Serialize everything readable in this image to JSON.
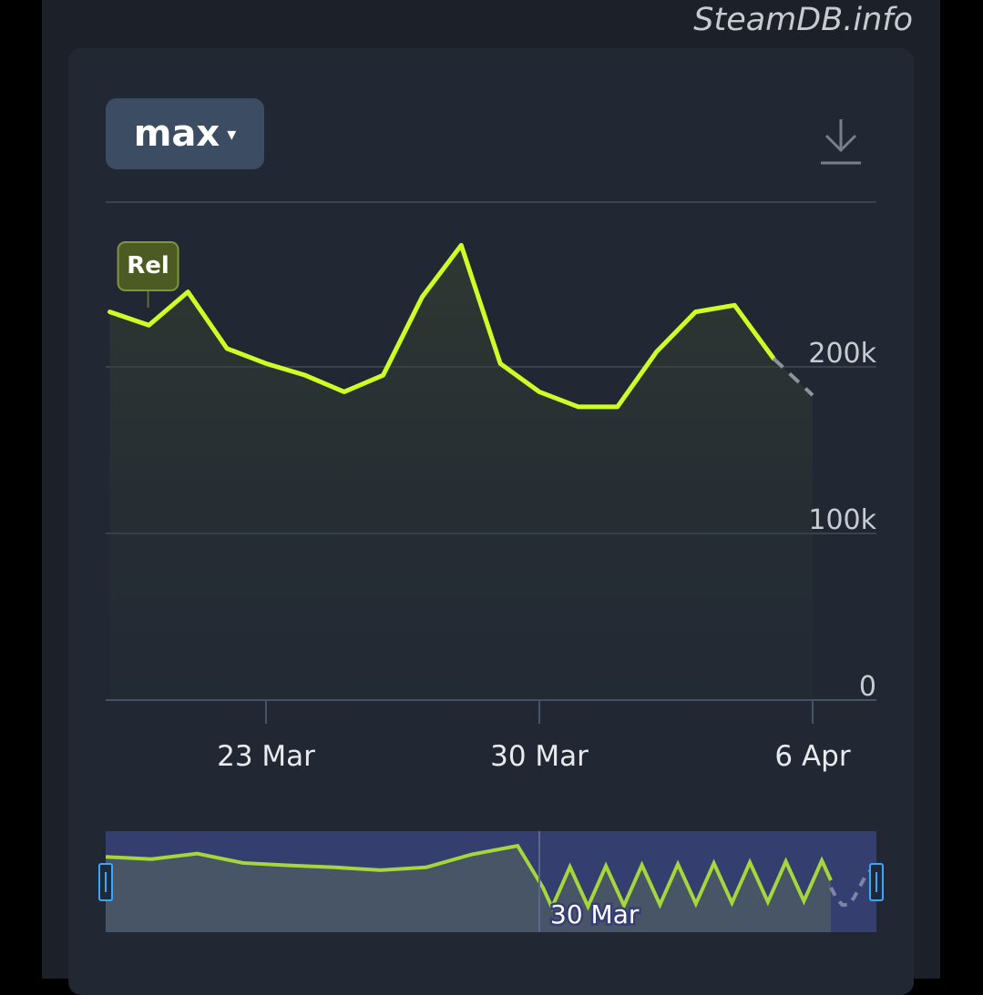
{
  "watermark": "SteamDB.info",
  "controls": {
    "range_label": "max",
    "range_caret": "▾",
    "download_icon": "download-icon"
  },
  "chart_data": {
    "type": "line",
    "title": "",
    "xlabel": "",
    "ylabel": "",
    "x_ticks": [
      "23 Mar",
      "30 Mar",
      "6 Apr"
    ],
    "y_ticks": [
      "0",
      "100k",
      "200k"
    ],
    "ylim": [
      0,
      300000
    ],
    "annotation": {
      "label": "Rel",
      "date": "2025-03-19"
    },
    "series": [
      {
        "color": "#cdff27",
        "x": [
          "2025-03-19",
          "2025-03-20",
          "2025-03-21",
          "2025-03-22",
          "2025-03-23",
          "2025-03-24",
          "2025-03-25",
          "2025-03-26",
          "2025-03-27",
          "2025-03-28",
          "2025-03-29",
          "2025-03-30",
          "2025-03-31",
          "2025-04-01",
          "2025-04-02",
          "2025-04-03",
          "2025-04-04",
          "2025-04-05",
          "2025-04-06"
        ],
        "values": [
          233000,
          225000,
          245000,
          211000,
          202000,
          195000,
          185000,
          195000,
          242000,
          273000,
          202000,
          185000,
          176000,
          176000,
          209000,
          233000,
          237000,
          205000,
          183000
        ],
        "partial_from_index": 17
      }
    ],
    "navigator": {
      "label": "30 Mar",
      "series_color": "#a5d63c",
      "selection_color": "#363f73"
    },
    "grid": true,
    "legend": "none"
  }
}
